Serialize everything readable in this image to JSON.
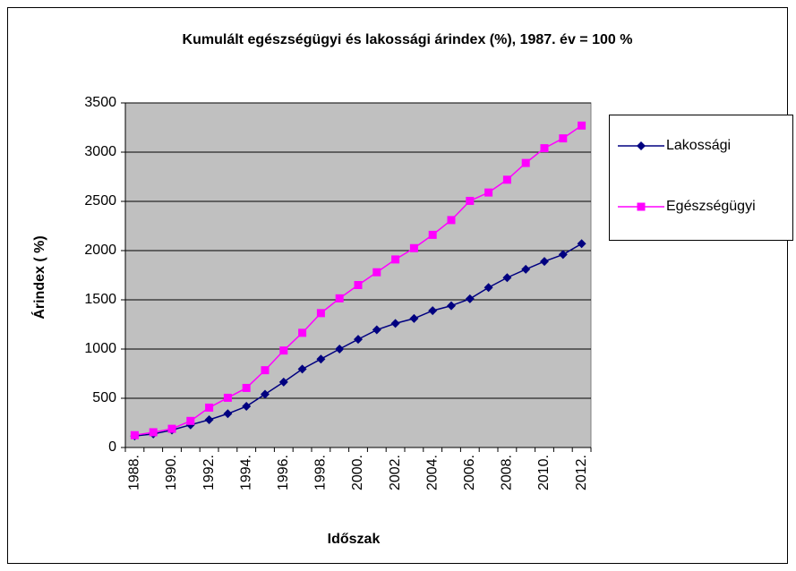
{
  "chart_data": {
    "type": "line",
    "title": "Kumulált egészségügyi és lakossági árindex (%), 1987. év = 100 %",
    "x_label": "Időszak",
    "y_label": "Árindex ( %)",
    "categories": [
      "1988.",
      null,
      "1990.",
      null,
      "1992.",
      null,
      "1994.",
      null,
      "1996.",
      null,
      "1998.",
      null,
      "2000.",
      null,
      "2002.",
      null,
      "2004.",
      null,
      "2006.",
      null,
      "2008.",
      null,
      "2010.",
      null,
      "2012."
    ],
    "series": [
      {
        "name": "Lakossági",
        "color": "#000080",
        "marker": "diamond",
        "values": [
          117,
          137,
          177,
          230,
          282,
          343,
          418,
          541,
          665,
          797,
          898,
          1000,
          1099,
          1195,
          1260,
          1310,
          1390,
          1440,
          1510,
          1625,
          1725,
          1810,
          1890,
          1960,
          2070
        ]
      },
      {
        "name": "Egészségügyi",
        "color": "#ff00ff",
        "marker": "square",
        "values": [
          125,
          155,
          190,
          270,
          405,
          505,
          605,
          785,
          985,
          1165,
          1365,
          1515,
          1650,
          1780,
          1910,
          2025,
          2160,
          2310,
          2505,
          2590,
          2720,
          2890,
          3040,
          3140,
          3270
        ]
      }
    ],
    "ylim": [
      0,
      3500
    ],
    "yticks": [
      0,
      500,
      1000,
      1500,
      2000,
      2500,
      3000,
      3500
    ],
    "grid": true,
    "legend": "right"
  }
}
